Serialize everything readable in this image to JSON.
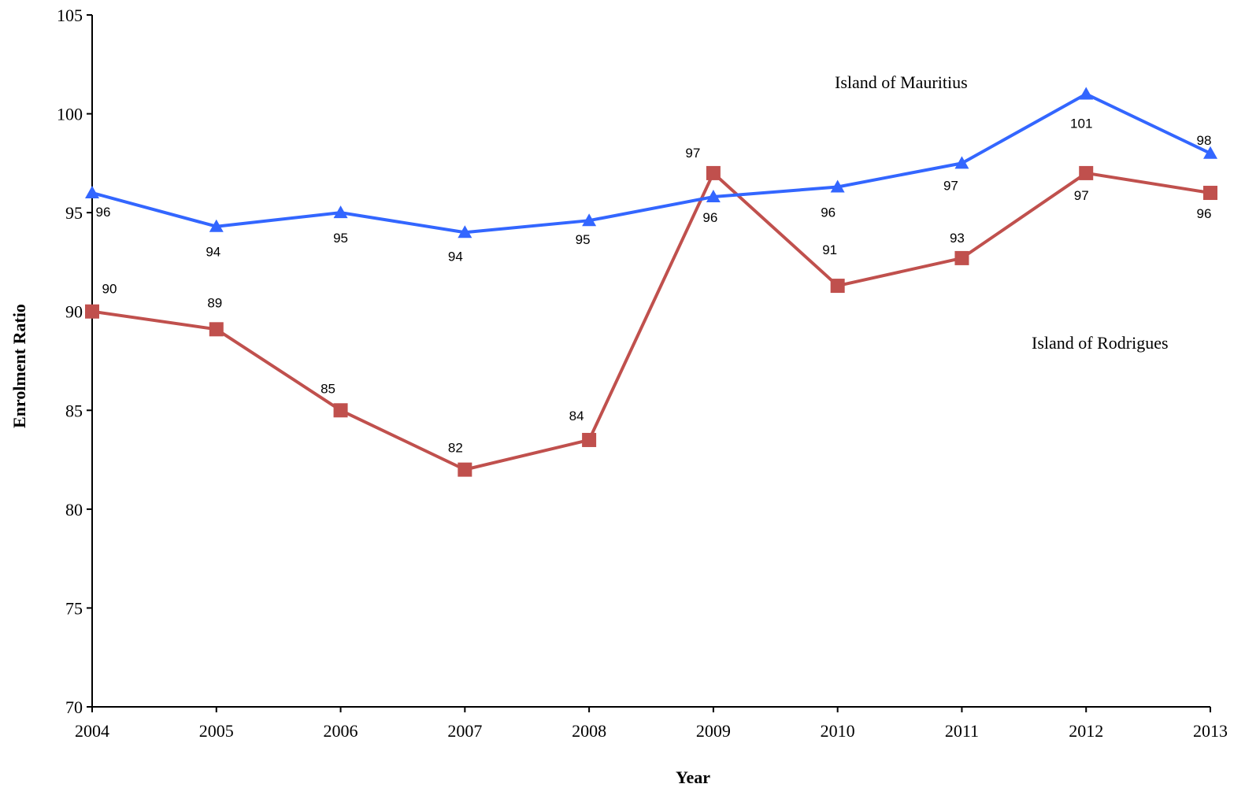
{
  "chart_data": {
    "type": "line",
    "title": "",
    "xlabel": "Year",
    "ylabel": "Enrolment Ratio",
    "ylim": [
      70,
      105
    ],
    "yticks": [
      "70",
      "75",
      "80",
      "85",
      "90",
      "95",
      "100",
      "105"
    ],
    "categories": [
      "2004",
      "2005",
      "2006",
      "2007",
      "2008",
      "2009",
      "2010",
      "2011",
      "2012",
      "2013"
    ],
    "grid": false,
    "legend": "none",
    "series": [
      {
        "name": "Island of Mauritius",
        "color": "#3366ff",
        "marker": "triangle",
        "values": [
          96.0,
          94.3,
          95.0,
          94.0,
          94.6,
          95.8,
          96.3,
          97.5,
          101.0,
          98.0
        ],
        "labels": [
          "96",
          "94",
          "95",
          "94",
          "95",
          "96",
          "96",
          "97",
          "101",
          "98"
        ]
      },
      {
        "name": "Island of Rodrigues",
        "color": "#c0504d",
        "marker": "square",
        "values": [
          90.0,
          89.1,
          85.0,
          82.0,
          83.5,
          97.0,
          91.3,
          92.7,
          97.0,
          96.0
        ],
        "labels": [
          "90",
          "89",
          "85",
          "82",
          "84",
          "97",
          "91",
          "93",
          "97",
          "96"
        ]
      }
    ]
  }
}
